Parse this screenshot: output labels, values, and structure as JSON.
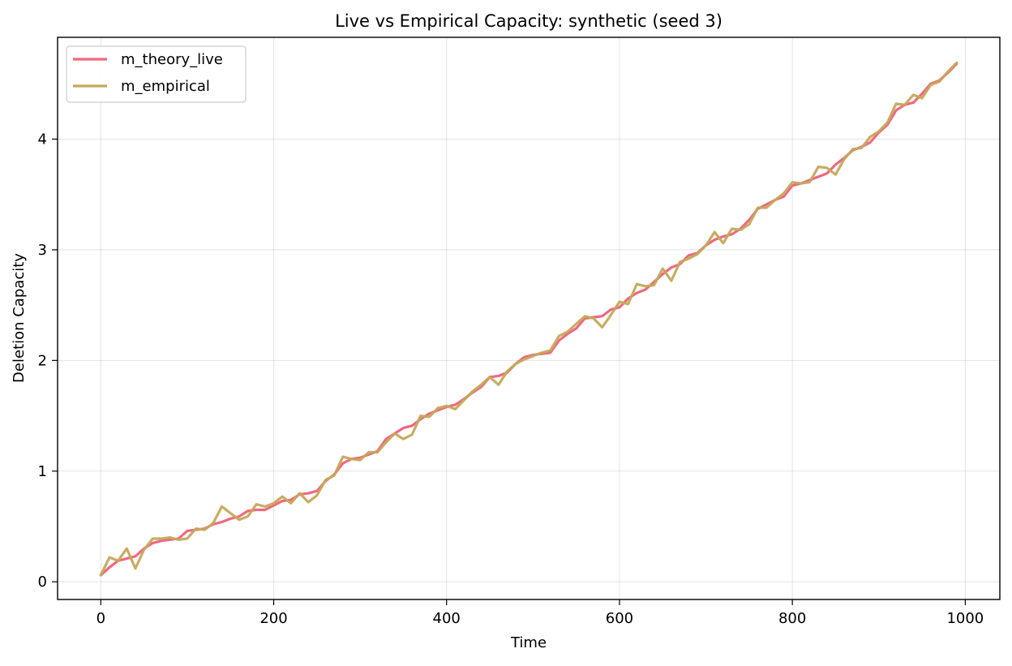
{
  "chart_data": {
    "type": "line",
    "title": "Live vs Empirical Capacity: synthetic (seed 3)",
    "xlabel": "Time",
    "ylabel": "Deletion Capacity",
    "xlim": [
      -50,
      1040
    ],
    "ylim": [
      -0.16,
      4.92
    ],
    "xticks": [
      0,
      200,
      400,
      600,
      800,
      1000
    ],
    "yticks": [
      0,
      1,
      2,
      3,
      4
    ],
    "grid": true,
    "legend_position": "top-left",
    "x": [
      0,
      10,
      20,
      30,
      40,
      50,
      60,
      70,
      80,
      90,
      100,
      110,
      120,
      130,
      140,
      150,
      160,
      170,
      180,
      190,
      200,
      210,
      220,
      230,
      240,
      250,
      260,
      270,
      280,
      290,
      300,
      310,
      320,
      330,
      340,
      350,
      360,
      370,
      380,
      390,
      400,
      410,
      420,
      430,
      440,
      450,
      460,
      470,
      480,
      490,
      500,
      510,
      520,
      530,
      540,
      550,
      560,
      570,
      580,
      590,
      600,
      610,
      620,
      630,
      640,
      650,
      660,
      670,
      680,
      690,
      700,
      710,
      720,
      730,
      740,
      750,
      760,
      770,
      780,
      790,
      800,
      810,
      820,
      830,
      840,
      850,
      860,
      870,
      880,
      890,
      900,
      910,
      920,
      930,
      940,
      950,
      960,
      970,
      980,
      990
    ],
    "series": [
      {
        "name": "m_theory_live",
        "color": "#f0697f",
        "values": [
          0.06,
          0.13,
          0.19,
          0.21,
          0.23,
          0.3,
          0.35,
          0.37,
          0.38,
          0.39,
          0.46,
          0.47,
          0.48,
          0.52,
          0.54,
          0.57,
          0.59,
          0.64,
          0.65,
          0.65,
          0.69,
          0.73,
          0.74,
          0.79,
          0.8,
          0.82,
          0.91,
          0.97,
          1.07,
          1.11,
          1.12,
          1.15,
          1.18,
          1.29,
          1.34,
          1.39,
          1.41,
          1.47,
          1.52,
          1.55,
          1.58,
          1.6,
          1.65,
          1.71,
          1.76,
          1.85,
          1.86,
          1.89,
          1.97,
          2.03,
          2.05,
          2.06,
          2.07,
          2.18,
          2.24,
          2.29,
          2.38,
          2.39,
          2.4,
          2.46,
          2.48,
          2.56,
          2.61,
          2.64,
          2.71,
          2.78,
          2.84,
          2.87,
          2.95,
          2.97,
          3.04,
          3.09,
          3.12,
          3.14,
          3.19,
          3.27,
          3.37,
          3.41,
          3.45,
          3.48,
          3.58,
          3.6,
          3.63,
          3.66,
          3.69,
          3.77,
          3.83,
          3.9,
          3.93,
          3.97,
          4.06,
          4.13,
          4.26,
          4.31,
          4.33,
          4.41,
          4.5,
          4.53,
          4.6,
          4.68
        ]
      },
      {
        "name": "m_empirical",
        "color": "#c5a85b",
        "values": [
          0.06,
          0.22,
          0.19,
          0.3,
          0.12,
          0.29,
          0.39,
          0.39,
          0.4,
          0.38,
          0.39,
          0.48,
          0.47,
          0.53,
          0.68,
          0.62,
          0.56,
          0.59,
          0.7,
          0.68,
          0.71,
          0.77,
          0.71,
          0.8,
          0.72,
          0.78,
          0.92,
          0.96,
          1.13,
          1.11,
          1.1,
          1.17,
          1.17,
          1.26,
          1.34,
          1.29,
          1.33,
          1.5,
          1.49,
          1.57,
          1.59,
          1.56,
          1.64,
          1.72,
          1.78,
          1.85,
          1.78,
          1.9,
          1.97,
          2.01,
          2.04,
          2.07,
          2.09,
          2.22,
          2.26,
          2.33,
          2.4,
          2.38,
          2.3,
          2.41,
          2.53,
          2.51,
          2.69,
          2.67,
          2.68,
          2.83,
          2.72,
          2.89,
          2.92,
          2.96,
          3.04,
          3.16,
          3.06,
          3.19,
          3.18,
          3.23,
          3.38,
          3.38,
          3.45,
          3.51,
          3.61,
          3.6,
          3.61,
          3.75,
          3.74,
          3.68,
          3.82,
          3.91,
          3.92,
          4.02,
          4.07,
          4.15,
          4.32,
          4.31,
          4.4,
          4.37,
          4.49,
          4.52,
          4.61,
          4.69
        ]
      }
    ]
  }
}
